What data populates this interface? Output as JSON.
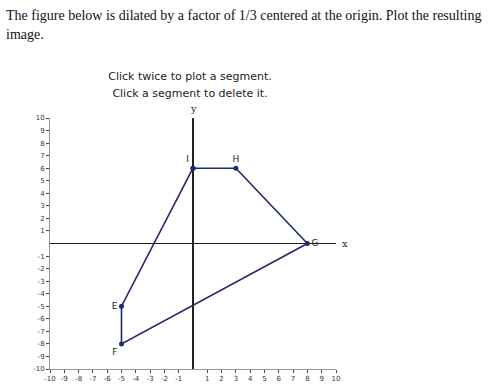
{
  "chart_data": {
    "type": "line",
    "title": "The figure below is dilated by a factor of 1/3 centered at the origin. Plot the resulting image.",
    "subtitle": [
      "Click twice to plot a segment.",
      "Click a segment to delete it."
    ],
    "x_label": "x",
    "y_label": "y",
    "x": [
      0,
      3,
      8,
      -5,
      -5,
      0
    ],
    "values": [
      6,
      6,
      0,
      -8,
      -5,
      6
    ],
    "value_labels": [
      "I",
      "H",
      "G",
      "F",
      "E",
      null
    ],
    "data_labels": true,
    "color": "#1f2a6b",
    "marker": "circle",
    "xlim": [
      -10,
      10
    ],
    "ylim": [
      -10,
      10
    ],
    "xticks": [
      -10,
      -9,
      -8,
      -7,
      -6,
      -5,
      -4,
      -3,
      -2,
      -1,
      1,
      2,
      3,
      4,
      5,
      6,
      7,
      8,
      9,
      10
    ],
    "yticks": [
      -10,
      -9,
      -8,
      -7,
      -6,
      -5,
      -4,
      -3,
      -2,
      -1,
      1,
      2,
      3,
      4,
      5,
      6,
      7,
      8,
      9,
      10
    ],
    "grid": false
  }
}
